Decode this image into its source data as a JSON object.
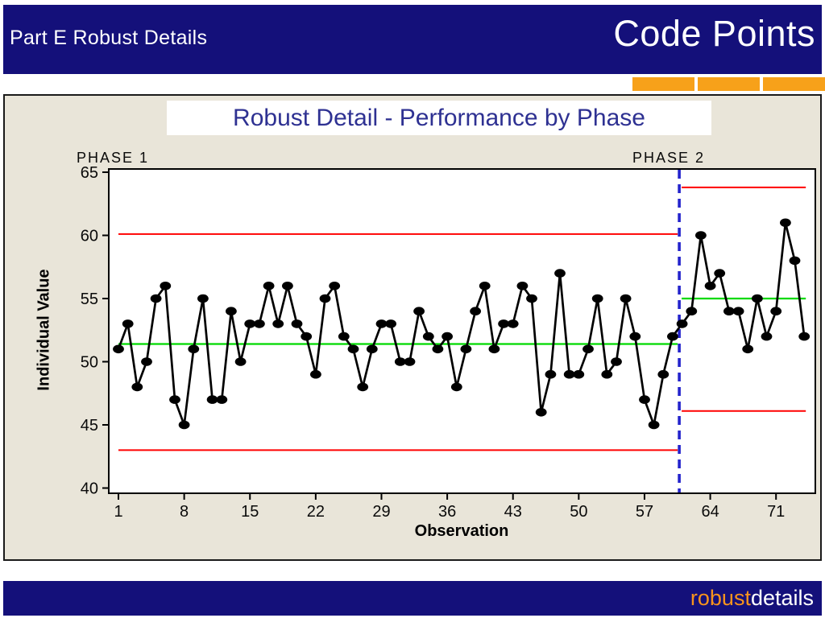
{
  "header": {
    "left_title": "Part E Robust Details",
    "right_title": "Code Points"
  },
  "footer": {
    "logo_part1": "robust",
    "logo_part2": "details"
  },
  "colors": {
    "navy": "#14107A",
    "orange_accent": "#F7A11A",
    "panel_beige": "#E9E5D9",
    "title_blue": "#2E3192",
    "control_limit_red": "#FF0000",
    "center_line_green": "#00D900",
    "phase_divider_blue": "#2424CC",
    "series_black": "#000000"
  },
  "chart_data": {
    "type": "line",
    "title": "Robust Detail - Performance by Phase",
    "xlabel": "Observation",
    "ylabel": "Individual Value",
    "x_ticks": [
      1,
      8,
      15,
      22,
      29,
      36,
      43,
      50,
      57,
      64,
      71
    ],
    "y_ticks": [
      65,
      60,
      55,
      50,
      45,
      40
    ],
    "ylim": [
      40,
      65
    ],
    "xlim": [
      0,
      75.5
    ],
    "grid": false,
    "legend": "none",
    "marker": "filled-circle",
    "values": [
      51,
      53,
      48,
      50,
      55,
      56,
      47,
      45,
      51,
      55,
      47,
      47,
      54,
      50,
      53,
      53,
      56,
      53,
      56,
      53,
      52,
      49,
      55,
      56,
      52,
      51,
      48,
      51,
      53,
      53,
      50,
      50,
      54,
      52,
      51,
      52,
      48,
      51,
      54,
      56,
      51,
      53,
      53,
      56,
      55,
      46,
      49,
      57,
      49,
      49,
      51,
      55,
      49,
      50,
      55,
      52,
      47,
      45,
      49,
      52,
      53,
      54,
      60,
      56,
      57,
      54,
      54,
      51,
      55,
      52,
      54,
      61,
      58,
      52
    ],
    "phases": [
      {
        "label": "PHASE 1",
        "obs_range": [
          1,
          60
        ],
        "ucl": 60.1,
        "center": 51.4,
        "lcl": 43.0
      },
      {
        "label": "PHASE 2",
        "obs_range": [
          61,
          74
        ],
        "ucl": 63.8,
        "center": 55.0,
        "lcl": 46.1
      }
    ],
    "phase_boundary_obs": 60.7
  }
}
